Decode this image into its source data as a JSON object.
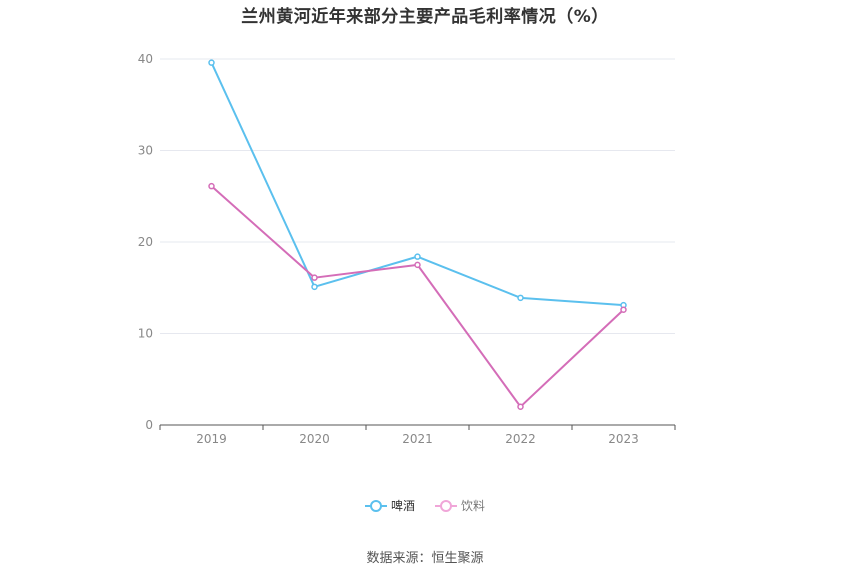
{
  "chart_data": {
    "type": "line",
    "title": "兰州黄河近年来部分主要产品毛利率情况（%）",
    "x": [
      "2019",
      "2020",
      "2021",
      "2022",
      "2023"
    ],
    "series": [
      {
        "name": "啤酒",
        "color": "#5bc0ee",
        "values": [
          39.6,
          15.1,
          18.4,
          13.9,
          13.1
        ]
      },
      {
        "name": "饮料",
        "color": "#d46db8",
        "values": [
          26.1,
          16.1,
          17.5,
          2.0,
          12.6
        ]
      }
    ],
    "ylim": [
      0,
      40
    ],
    "yticks": [
      0,
      10,
      20,
      30,
      40
    ],
    "grid": true,
    "legend_position": "bottom-center"
  },
  "source_text": "数据来源：恒生聚源"
}
